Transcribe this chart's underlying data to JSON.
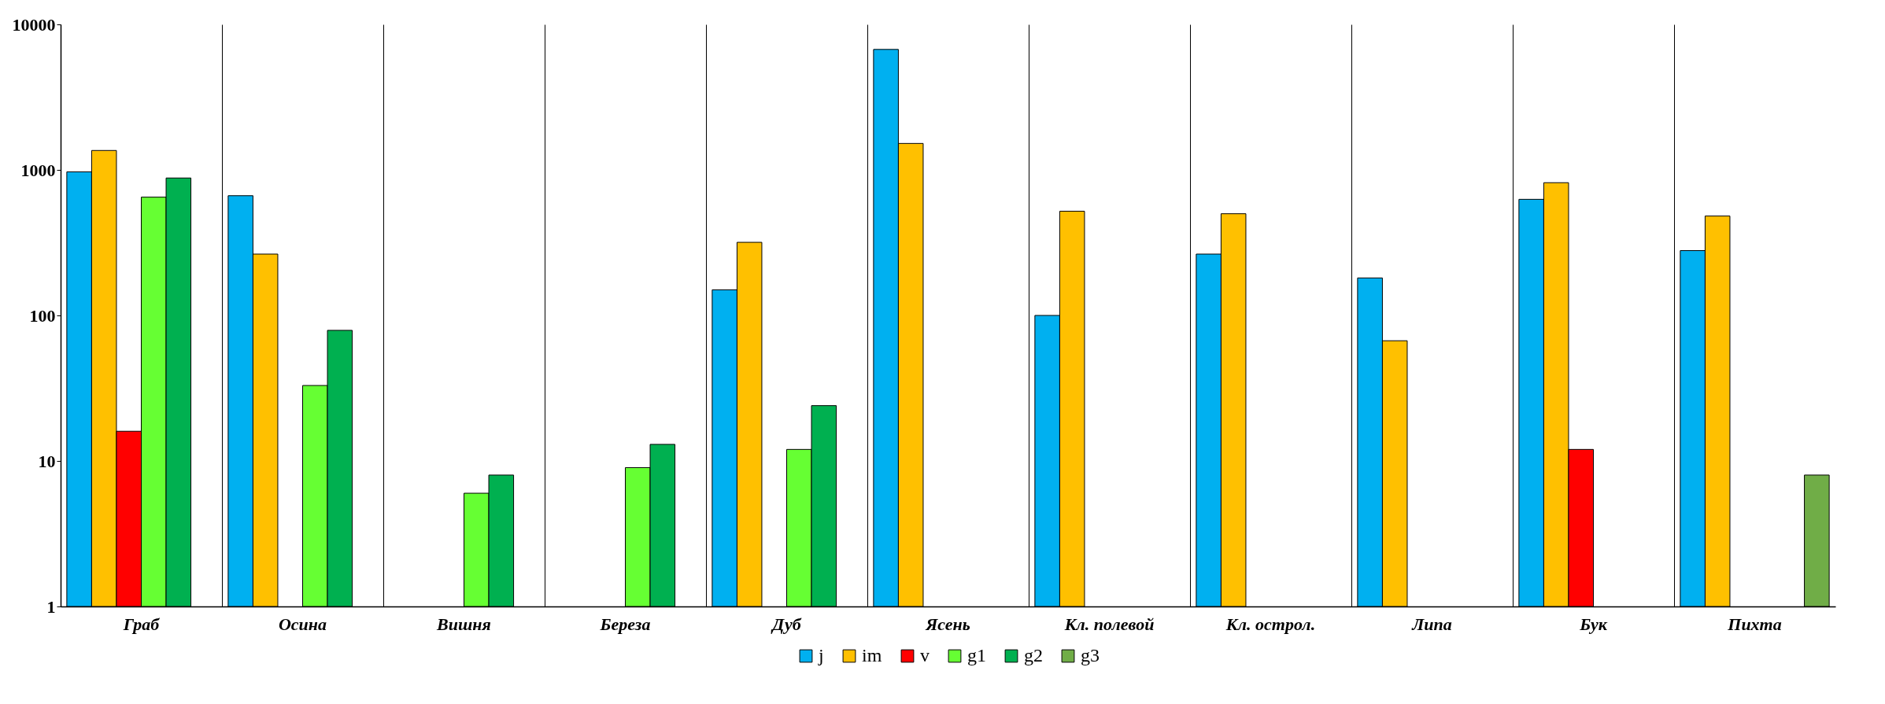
{
  "chart_data": {
    "type": "bar",
    "categories": [
      "Граб",
      "Осина",
      "Вишня",
      "Береза",
      "Дуб",
      "Ясень",
      "Кл. полевой",
      "Кл. острол.",
      "Липа",
      "Бук",
      "Пихта"
    ],
    "series": [
      {
        "name": "j",
        "color": "#00b0f0",
        "values": [
          970,
          665,
          null,
          null,
          150,
          6730,
          100,
          264,
          181,
          628,
          279
        ]
      },
      {
        "name": "im",
        "color": "#ffc000",
        "values": [
          1360,
          264,
          null,
          null,
          318,
          1520,
          520,
          500,
          67,
          817,
          482
        ]
      },
      {
        "name": "v",
        "color": "#ff0000",
        "values": [
          16,
          null,
          null,
          null,
          null,
          null,
          null,
          null,
          null,
          12,
          null
        ]
      },
      {
        "name": "g1",
        "color": "#66ff33",
        "values": [
          650,
          33,
          6,
          9,
          12,
          null,
          null,
          null,
          null,
          null,
          null
        ]
      },
      {
        "name": "g2",
        "color": "#00b050",
        "values": [
          880,
          79,
          8,
          13,
          24,
          null,
          null,
          null,
          null,
          null,
          null
        ]
      },
      {
        "name": "g3",
        "color": "#70ad47",
        "values": [
          null,
          null,
          null,
          null,
          null,
          null,
          null,
          null,
          null,
          null,
          8
        ]
      }
    ],
    "log": true,
    "ylim": [
      1,
      10000
    ],
    "yticks": [
      1,
      10,
      100,
      1000,
      10000
    ],
    "grid": "x",
    "legend": "bottom"
  }
}
